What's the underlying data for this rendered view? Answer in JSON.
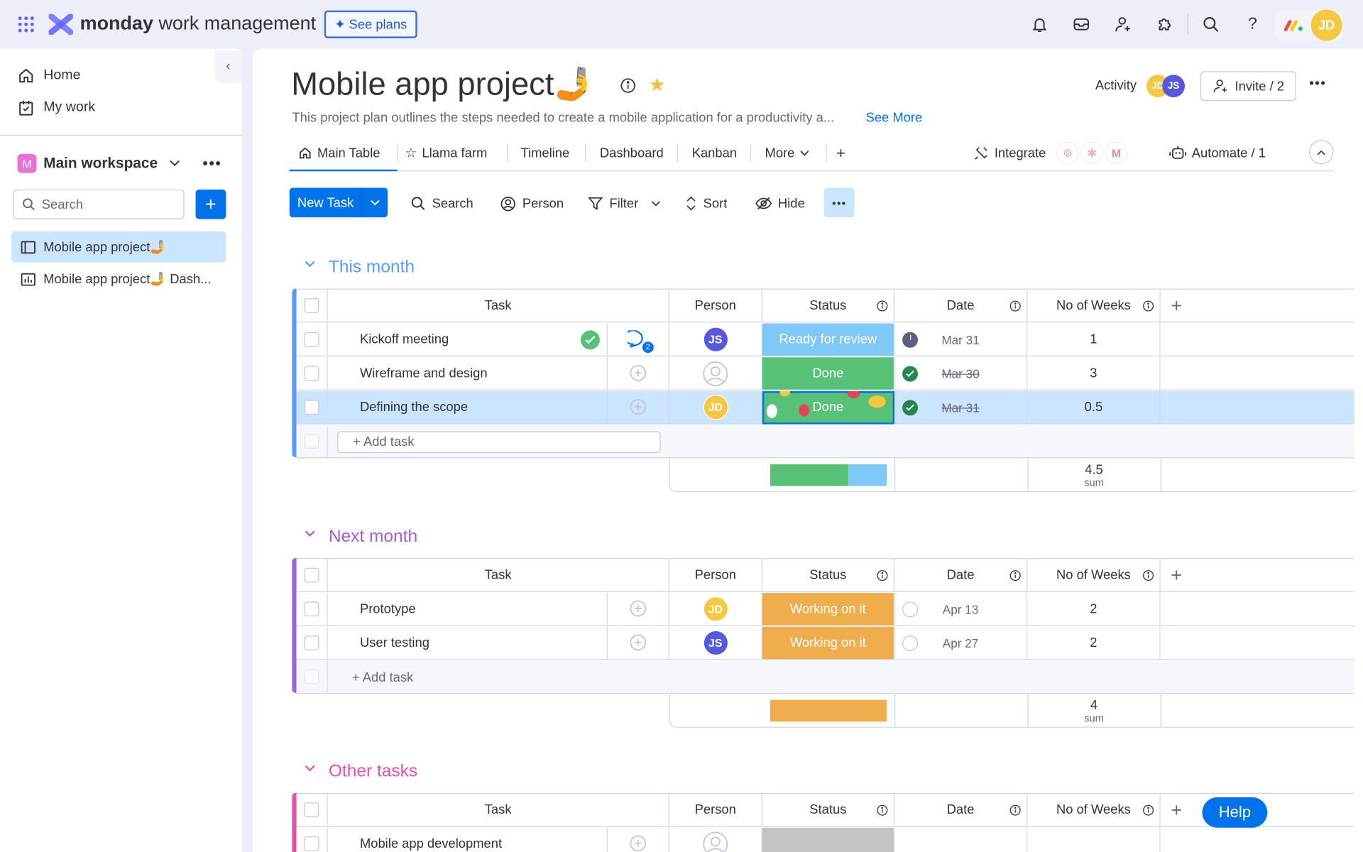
{
  "topbar": {
    "brand_bold": "monday",
    "brand_rest": "work management",
    "see_plans": "See plans",
    "user_initials": "JD"
  },
  "sidebar": {
    "home": "Home",
    "my_work": "My work",
    "workspace_initial": "M",
    "workspace": "Main workspace",
    "search_placeholder": "Search",
    "boards": [
      "Mobile app project🤳",
      "Mobile app project🤳 Dash..."
    ]
  },
  "board": {
    "title": "Mobile app project🤳",
    "description": "This project plan outlines the steps needed to create a mobile application for a productivity a...",
    "see_more": "See More",
    "activity": "Activity",
    "activity_avatars": [
      "JD",
      "JS"
    ],
    "invite": "Invite / 2",
    "tabs": [
      "Main Table",
      "Llama farm",
      "Timeline",
      "Dashboard",
      "Kanban",
      "More"
    ],
    "integrate": "Integrate",
    "automate": "Automate / 1"
  },
  "toolbar": {
    "new_task": "New Task",
    "search": "Search",
    "person": "Person",
    "filter": "Filter",
    "sort": "Sort",
    "hide": "Hide"
  },
  "columns": [
    "Task",
    "Person",
    "Status",
    "Date",
    "No of Weeks"
  ],
  "colors": {
    "done": "#57c178",
    "review": "#80c8f8",
    "working": "#f0ad4e",
    "empty": "#c4c4c4",
    "js": "#5559df",
    "jd": "#f5c842",
    "accent": "#0073ea"
  },
  "groups": [
    {
      "title": "This month",
      "color": "#579bfc",
      "add_task": "+ Add task",
      "sum": "4.5",
      "sum_label": "sum",
      "summary_bar": [
        {
          "color": "#57c178",
          "fraction": 0.67
        },
        {
          "color": "#80c8f8",
          "fraction": 0.33
        }
      ],
      "rows": [
        {
          "task": "Kickoff meeting",
          "done_check": true,
          "updates": "2",
          "person": "JS",
          "status": "Ready for review",
          "status_color": "#80c8f8",
          "date": "Mar 31",
          "date_state": "clock",
          "date_strike": false,
          "weeks": "1",
          "selected": false
        },
        {
          "task": "Wireframe and design",
          "person": "",
          "status": "Done",
          "status_color": "#57c178",
          "date": "Mar 30",
          "date_state": "done",
          "date_strike": true,
          "weeks": "3",
          "selected": false
        },
        {
          "task": "Defining the scope",
          "person": "JD",
          "status": "Done",
          "status_color": "#57c178",
          "date": "Mar 31",
          "date_state": "done",
          "date_strike": true,
          "weeks": "0.5",
          "selected": true,
          "confetti": true
        }
      ]
    },
    {
      "title": "Next month",
      "color": "#a25ddc",
      "add_task": "+ Add task",
      "sum": "4",
      "sum_label": "sum",
      "summary_bar": [
        {
          "color": "#f0ad4e",
          "fraction": 1
        }
      ],
      "rows": [
        {
          "task": "Prototype",
          "person": "JD",
          "status": "Working on it",
          "status_color": "#f0ad4e",
          "date": "Apr 13",
          "date_state": "empty",
          "date_strike": false,
          "weeks": "2"
        },
        {
          "task": "User testing",
          "person": "JS",
          "status": "Working on it",
          "status_color": "#f0ad4e",
          "date": "Apr 27",
          "date_state": "empty",
          "date_strike": false,
          "weeks": "2"
        }
      ]
    },
    {
      "title": "Other tasks",
      "color": "#e44fae",
      "rows": [
        {
          "task": "Mobile app development",
          "person": "",
          "status": "",
          "status_color": "#c4c4c4",
          "date": "",
          "date_state": "none",
          "weeks": ""
        }
      ]
    }
  ],
  "help": "Help"
}
